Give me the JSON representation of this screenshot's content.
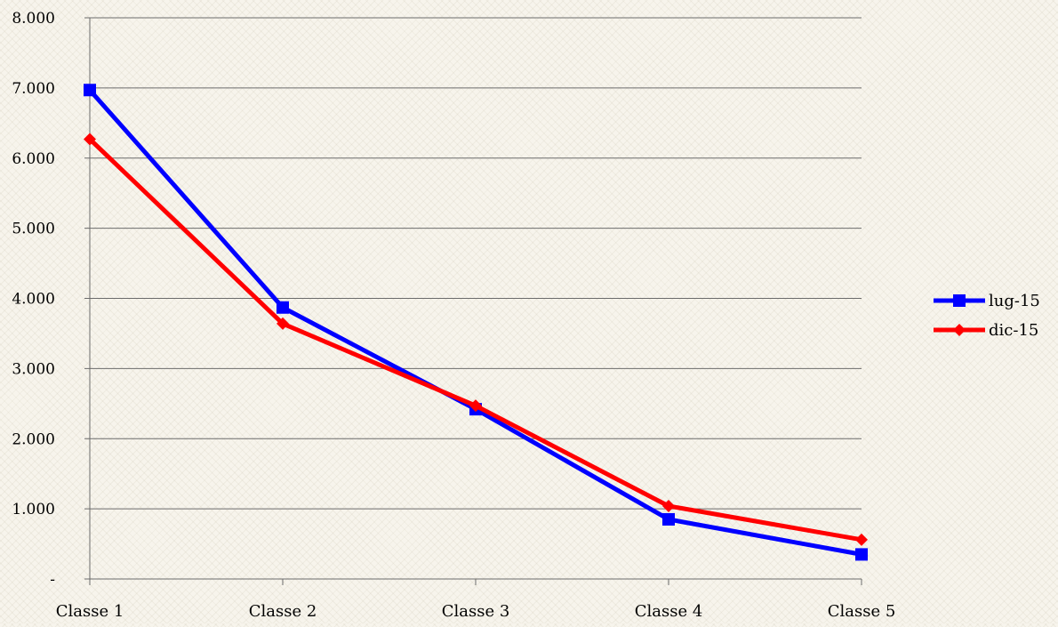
{
  "chart_data": {
    "type": "line",
    "categories": [
      "Classe 1",
      "Classe 2",
      "Classe 3",
      "Classe 4",
      "Classe 5"
    ],
    "series": [
      {
        "name": "lug-15",
        "values": [
          6970,
          3870,
          2420,
          850,
          350
        ],
        "color": "#0000ff",
        "marker": "square"
      },
      {
        "name": "dic-15",
        "values": [
          6270,
          3640,
          2470,
          1040,
          560
        ],
        "color": "#ff0000",
        "marker": "diamond"
      }
    ],
    "ylim": [
      0,
      8000
    ],
    "yticks": [
      0,
      1000,
      2000,
      3000,
      4000,
      5000,
      6000,
      7000,
      8000
    ],
    "ytick_labels": [
      "-",
      "1.000",
      "2.000",
      "3.000",
      "4.000",
      "5.000",
      "6.000",
      "7.000",
      "8.000"
    ],
    "grid": true,
    "legend_position": "right",
    "title": "",
    "xlabel": "",
    "ylabel": ""
  }
}
